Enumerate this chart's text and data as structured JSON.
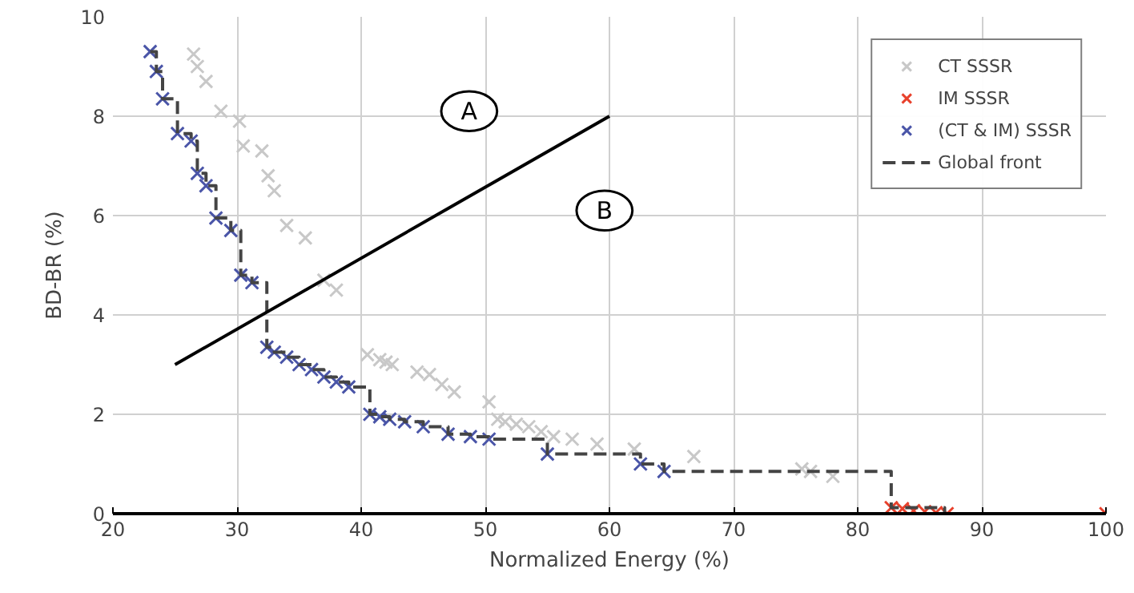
{
  "chart_data": {
    "type": "scatter",
    "xlabel": "Normalized Energy (%)",
    "ylabel": "BD-BR (%)",
    "xlim": [
      20,
      100
    ],
    "ylim": [
      0,
      10
    ],
    "xticks": [
      20,
      30,
      40,
      50,
      60,
      70,
      80,
      90,
      100
    ],
    "yticks": [
      0,
      2,
      4,
      6,
      8,
      10
    ],
    "grid": true,
    "legend": "top right",
    "marker": "cross",
    "series": [
      {
        "name": "CT SSSR",
        "color": "#c8c8c8",
        "x": [
          26.5,
          26.8,
          27.5,
          28.7,
          30.2,
          30.5,
          32,
          32.5,
          33,
          34,
          35.5,
          37,
          38,
          40.5,
          41.5,
          42,
          42.5,
          44.5,
          45.5,
          46.5,
          47.5,
          50.3,
          51,
          51.6,
          52.5,
          53.5,
          54.5,
          55.5,
          57,
          59,
          62,
          66.8,
          75.5,
          76.2,
          78
        ],
        "values": [
          9.25,
          9.0,
          8.7,
          8.1,
          7.9,
          7.4,
          7.3,
          6.8,
          6.5,
          5.8,
          5.55,
          4.7,
          4.5,
          3.2,
          3.1,
          3.05,
          3.0,
          2.85,
          2.8,
          2.6,
          2.45,
          2.25,
          1.9,
          1.85,
          1.8,
          1.75,
          1.65,
          1.55,
          1.5,
          1.4,
          1.3,
          1.15,
          0.9,
          0.85,
          0.75
        ]
      },
      {
        "name": "IM SSSR",
        "color": "#e8412c",
        "x": [
          82.7,
          83.6,
          84.5,
          85.4,
          86.3,
          87.2,
          100
        ],
        "values": [
          0.12,
          0.1,
          0.06,
          0.04,
          0.02,
          0.0,
          0.0
        ]
      },
      {
        "name": "(CT & IM) SSSR",
        "color": "#4a55a8",
        "x": [
          23,
          23.5,
          24,
          25.2,
          26.3,
          26.8,
          27.5,
          28.3,
          29.5,
          30.3,
          31.2,
          32.4,
          33,
          34,
          35,
          36,
          37,
          38,
          39,
          40.7,
          41.5,
          42.3,
          43.5,
          45,
          47,
          48.8,
          50.3,
          55,
          62.5,
          64.4
        ],
        "values": [
          9.3,
          8.9,
          8.35,
          7.65,
          7.5,
          6.85,
          6.6,
          5.95,
          5.7,
          4.8,
          4.65,
          3.35,
          3.25,
          3.15,
          3.0,
          2.9,
          2.75,
          2.65,
          2.55,
          2.0,
          1.95,
          1.9,
          1.85,
          1.75,
          1.6,
          1.55,
          1.5,
          1.2,
          1.0,
          0.85
        ]
      },
      {
        "name": "Global front",
        "type": "step",
        "color": "#444444",
        "marker": "none",
        "line_style": "dashed",
        "x": [
          23,
          23.5,
          24,
          25.2,
          26.3,
          26.8,
          27.5,
          28.3,
          29.5,
          30.3,
          31.2,
          32.4,
          33,
          34,
          35,
          36,
          37,
          38,
          39,
          40.7,
          41.5,
          42.3,
          43.5,
          45,
          47,
          48.8,
          50.3,
          55,
          62.5,
          64.4,
          82.7,
          87,
          100
        ],
        "values": [
          9.3,
          8.9,
          8.35,
          7.65,
          7.5,
          6.85,
          6.6,
          5.95,
          5.7,
          4.8,
          4.65,
          3.35,
          3.25,
          3.15,
          3.0,
          2.9,
          2.75,
          2.65,
          2.55,
          2.0,
          1.95,
          1.9,
          1.85,
          1.75,
          1.6,
          1.55,
          1.5,
          1.2,
          1.0,
          0.85,
          0.12,
          0.0,
          0.0
        ]
      },
      {
        "type": "line",
        "color": "#000000",
        "marker": "none",
        "line_style": "solid",
        "x": [
          25,
          60
        ],
        "values": [
          3,
          8
        ]
      }
    ],
    "annotations": [
      {
        "text": "A",
        "x": 48.7,
        "y": 8.1
      },
      {
        "text": "B",
        "x": 59.6,
        "y": 6.1
      }
    ]
  }
}
